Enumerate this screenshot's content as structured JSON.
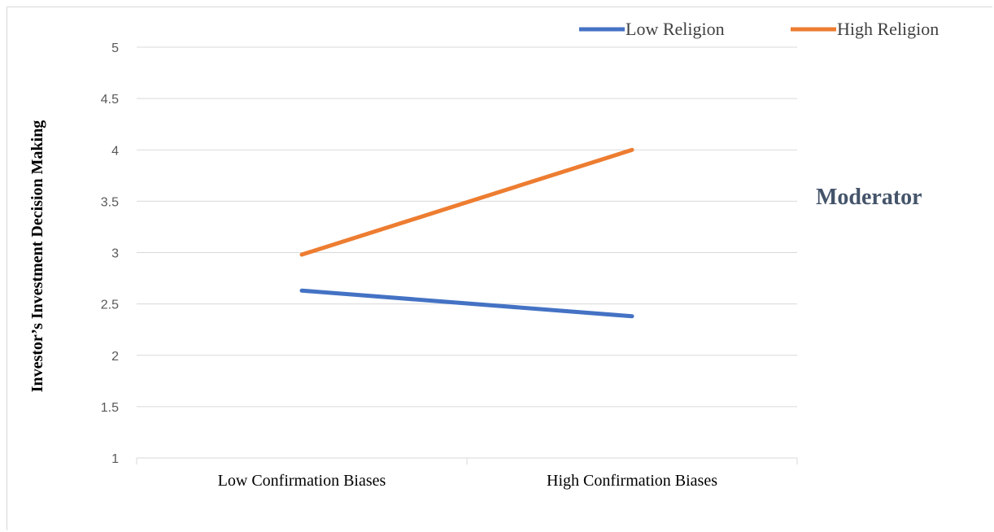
{
  "chart_data": {
    "type": "line",
    "categories": [
      "Low Confirmation Biases",
      "High Confirmation Biases"
    ],
    "series": [
      {
        "name": "Low Religion",
        "values": [
          2.63,
          2.38
        ],
        "color": "#4472c4"
      },
      {
        "name": "High Religion",
        "values": [
          2.98,
          4.0
        ],
        "color": "#ed7d31"
      }
    ],
    "ylabel": "Investor’s Investment Decision Making",
    "ylim": [
      1,
      5
    ],
    "yticks": [
      "1",
      "1.5",
      "2",
      "2.5",
      "3",
      "3.5",
      "4",
      "4.5",
      "5"
    ],
    "annotation": "Moderator",
    "grid": true,
    "legend_position": "top-right",
    "gridline_color": "#d9d9d9"
  }
}
